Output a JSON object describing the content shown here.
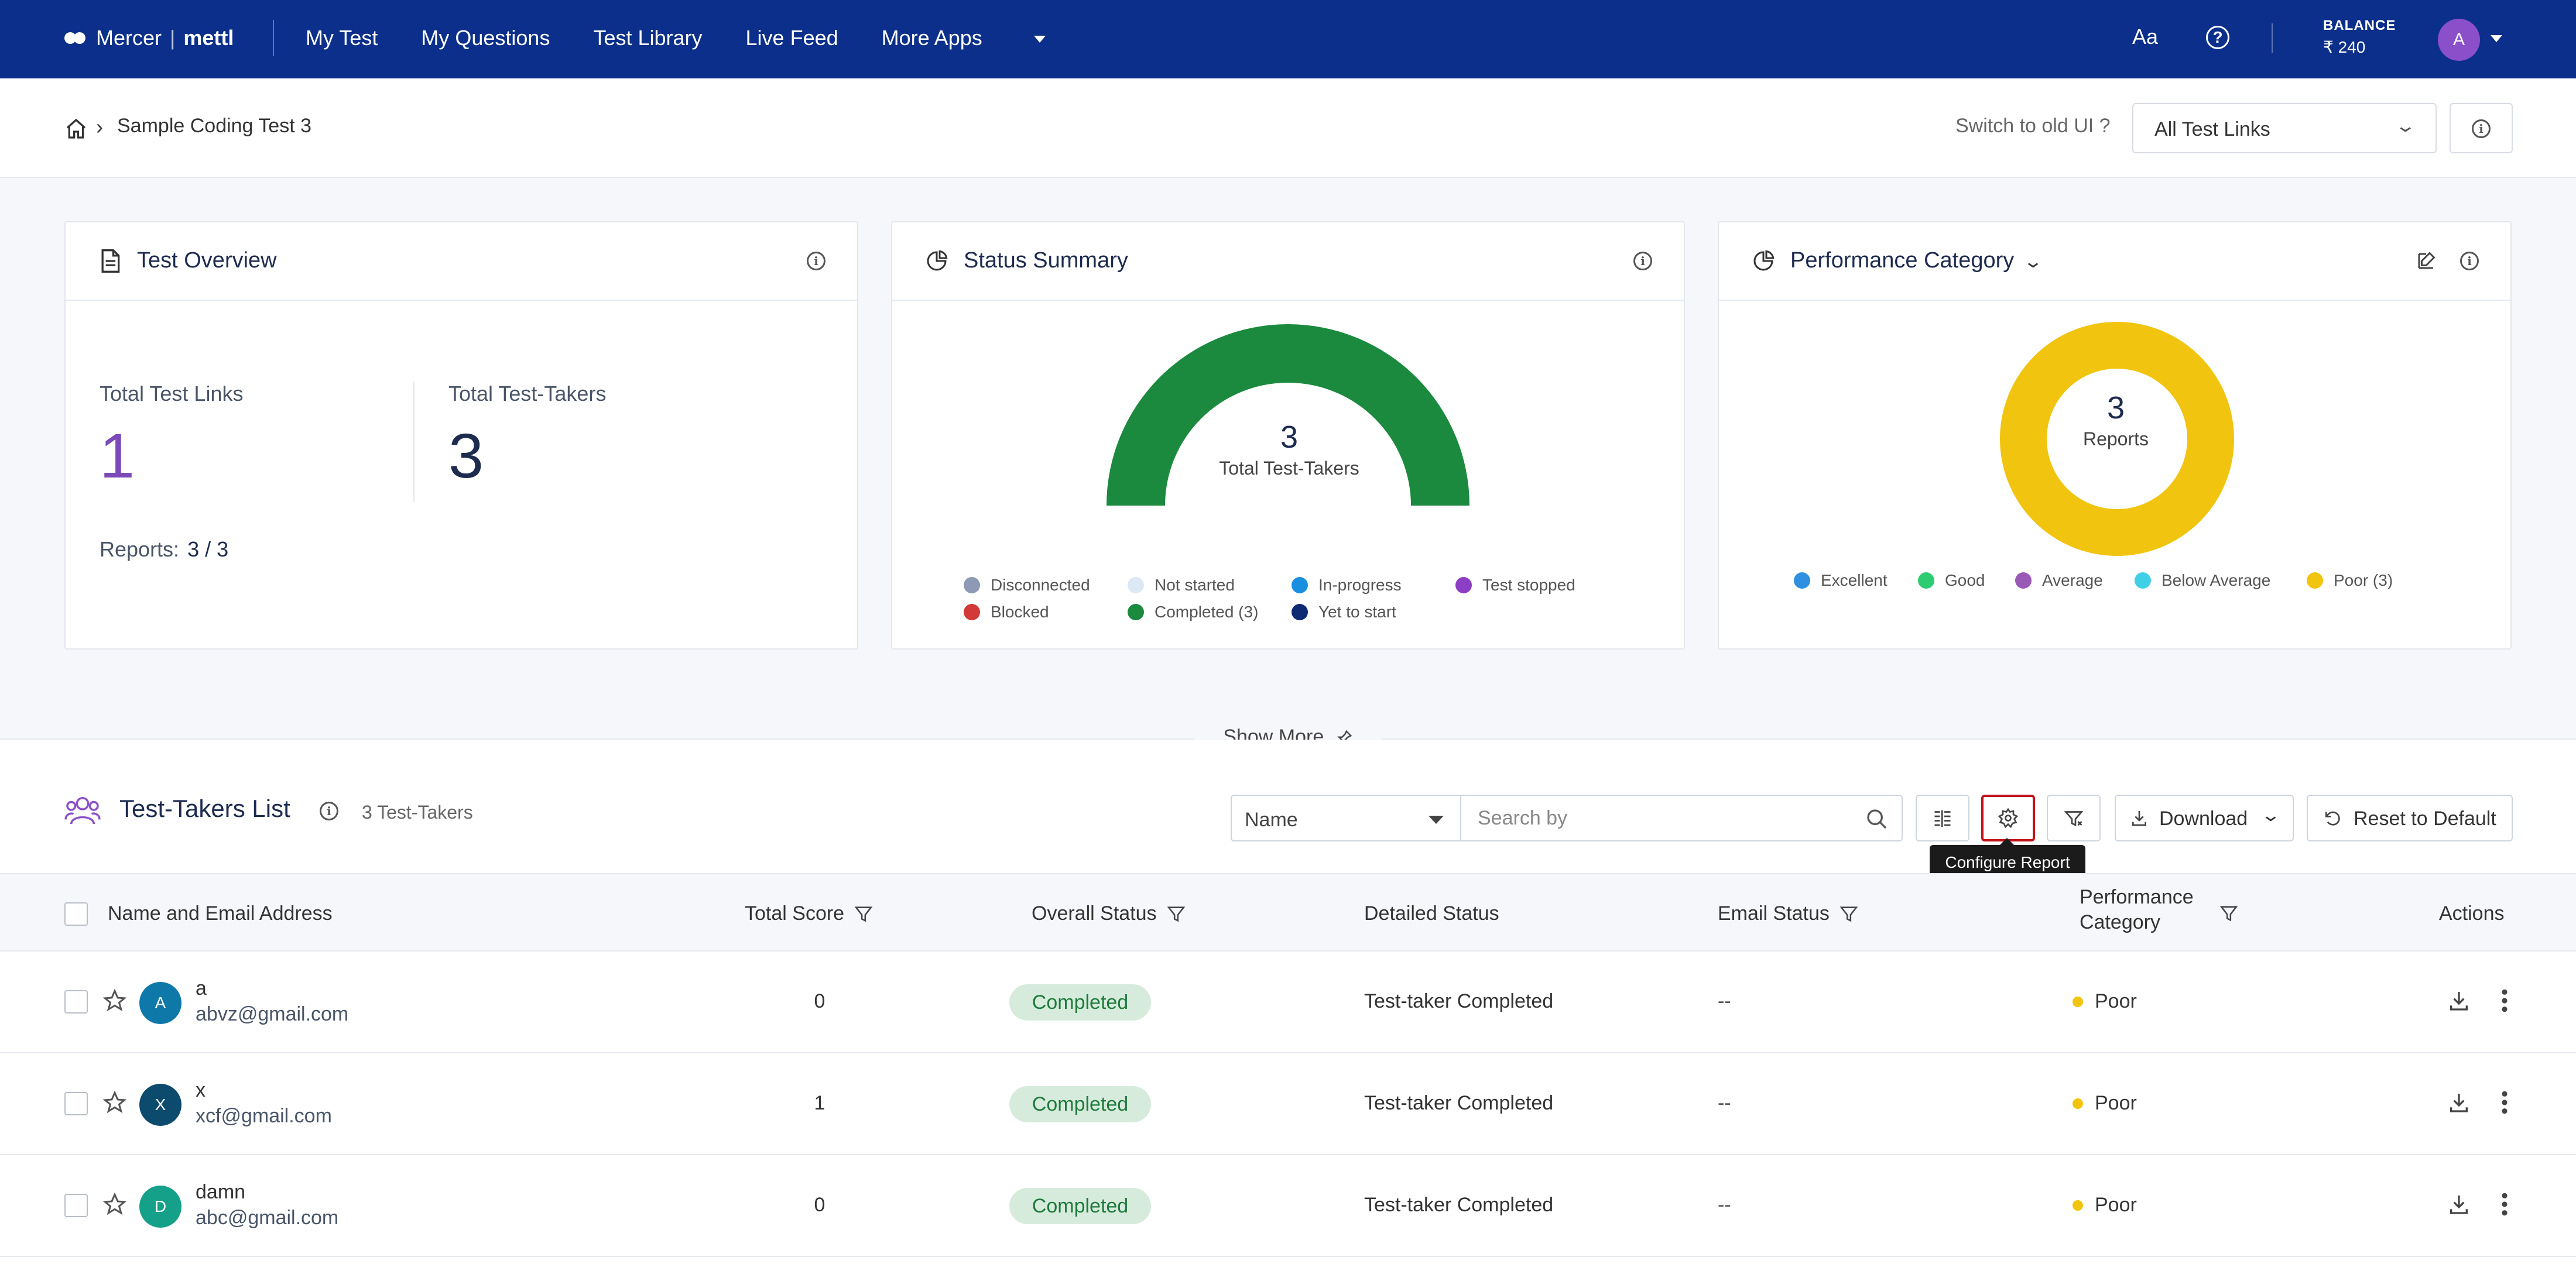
{
  "nav": {
    "brand_mercer": "Mercer",
    "brand_sep": "|",
    "brand_mettl": "mettl",
    "links": [
      "My Test",
      "My Questions",
      "Test Library",
      "Live Feed"
    ],
    "more_apps": "More Apps",
    "font_icon": "Aa",
    "help_icon": "?",
    "balance_label": "BALANCE",
    "balance_value": "₹ 240",
    "avatar_initial": "A"
  },
  "breadcrumb": {
    "title": "Sample Coding Test 3",
    "switch_old_ui": "Switch to old UI ?",
    "test_links_selected": "All Test Links"
  },
  "cards": {
    "overview": {
      "title": "Test Overview",
      "total_links_label": "Total Test Links",
      "total_links_value": "1",
      "total_takers_label": "Total Test-Takers",
      "total_takers_value": "3",
      "reports_label": "Reports:",
      "reports_value": "3 / 3"
    },
    "status": {
      "title": "Status Summary",
      "center_value": "3",
      "center_label": "Total Test-Takers",
      "legend": [
        {
          "label": "Disconnected",
          "color": "#8e9ab5"
        },
        {
          "label": "Not started",
          "color": "#dde8f5"
        },
        {
          "label": "In-progress",
          "color": "#1a8fe0"
        },
        {
          "label": "Test stopped",
          "color": "#8c3fc4"
        },
        {
          "label": "Blocked",
          "color": "#d23a3a"
        },
        {
          "label": "Completed (3)",
          "color": "#1b8a3e"
        },
        {
          "label": "Yet to start",
          "color": "#0d2a72"
        }
      ]
    },
    "performance": {
      "title": "Performance Category",
      "center_value": "3",
      "center_label": "Reports",
      "legend": [
        {
          "label": "Excellent",
          "color": "#2f8fe0"
        },
        {
          "label": "Good",
          "color": "#2ecc71"
        },
        {
          "label": "Average",
          "color": "#9b59b6"
        },
        {
          "label": "Below Average",
          "color": "#3fd0e8"
        },
        {
          "label": "Poor (3)",
          "color": "#f1c40f"
        }
      ]
    }
  },
  "show_more": "Show More",
  "list": {
    "title": "Test-Takers List",
    "count": "3 Test-Takers",
    "search_field": "Name",
    "search_placeholder": "Search by",
    "download_label": "Download",
    "reset_label": "Reset to Default",
    "tooltip": "Configure Report"
  },
  "table": {
    "headers": {
      "name": "Name and Email Address",
      "score": "Total Score",
      "overall": "Overall Status",
      "detailed": "Detailed Status",
      "email_status": "Email Status",
      "perf_line1": "Performance",
      "perf_line2": "Category",
      "actions": "Actions"
    },
    "rows": [
      {
        "initial": "A",
        "avatar_color": "#0e78a8",
        "name": "a",
        "email": "abvz@gmail.com",
        "score": "0",
        "overall": "Completed",
        "detailed": "Test-taker Completed",
        "email_status": "--",
        "performance": "Poor"
      },
      {
        "initial": "X",
        "avatar_color": "#0c4a6e",
        "name": "x",
        "email": "xcf@gmail.com",
        "score": "1",
        "overall": "Completed",
        "detailed": "Test-taker Completed",
        "email_status": "--",
        "performance": "Poor"
      },
      {
        "initial": "D",
        "avatar_color": "#15a08a",
        "name": "damn",
        "email": "abc@gmail.com",
        "score": "0",
        "overall": "Completed",
        "detailed": "Test-taker Completed",
        "email_status": "--",
        "performance": "Poor"
      }
    ]
  }
}
